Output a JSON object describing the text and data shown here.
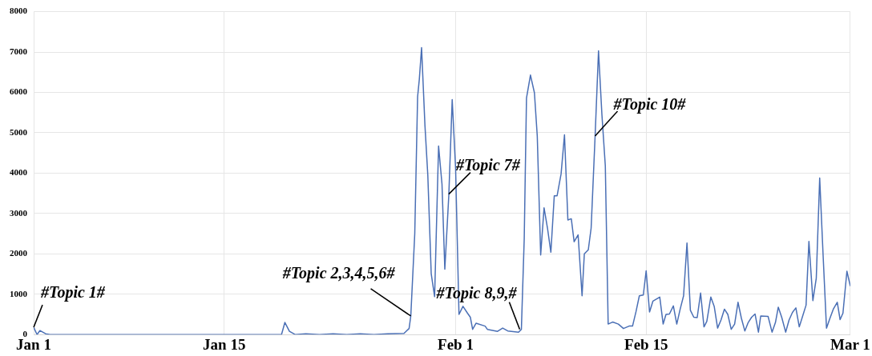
{
  "chart_data": {
    "type": "line",
    "color": "#4a6fb5",
    "xlim": [
      "--01-01",
      "--03-01"
    ],
    "ylim": [
      0,
      8000
    ],
    "xticks": [
      {
        "value": "--01-01",
        "label": "Jan 1"
      },
      {
        "value": "--01-15",
        "label": "Jan 15"
      },
      {
        "value": "--02-01",
        "label": "Feb 1"
      },
      {
        "value": "--02-15",
        "label": "Feb 15"
      },
      {
        "value": "--03-01",
        "label": "Mar 1"
      }
    ],
    "yticks": [
      0,
      1000,
      2000,
      3000,
      4000,
      5000,
      6000,
      7000,
      8000
    ],
    "grid": true,
    "marker": "none",
    "line_style": "solid",
    "x": [
      "--01-01T00:00",
      "--01-01T06:00",
      "--01-01T11:00",
      "--01-01T21:00",
      "--01-02T05:00",
      "--01-19T05:00",
      "--01-19T11:00",
      "--01-19T19:00",
      "--01-20T05:00",
      "--01-21T00:00",
      "--01-22T00:00",
      "--01-23T00:00",
      "--01-24T00:00",
      "--01-25T00:00",
      "--01-26T00:00",
      "--01-27T00:00",
      "--01-28T05:00",
      "--01-28T14:00",
      "--01-28T17:00",
      "--01-29T00:00",
      "--01-29T05:00",
      "--01-29T08:00",
      "--01-29T12:00",
      "--01-29T18:00",
      "--01-29T23:00",
      "--01-30T05:00",
      "--01-30T11:00",
      "--01-30T18:00",
      "--01-31T00:00",
      "--01-31T05:00",
      "--01-31T12:00",
      "--01-31T18:00",
      "--02-01T00:00",
      "--02-01T06:00",
      "--02-01T13:00",
      "--02-01T21:00",
      "--02-02T02:00",
      "--02-02T06:00",
      "--02-02T12:00",
      "--02-03T04:00",
      "--02-03T08:00",
      "--02-04T02:00",
      "--02-04T11:00",
      "--02-04T20:00",
      "--02-05T15:00",
      "--02-05T20:00",
      "--02-06T01:00",
      "--02-06T05:00",
      "--02-06T12:00",
      "--02-06T19:00",
      "--02-07T00:00",
      "--02-07T06:00",
      "--02-07T12:00",
      "--02-07T18:00",
      "--02-08T00:00",
      "--02-08T06:00",
      "--02-08T11:00",
      "--02-08T18:00",
      "--02-09T00:00",
      "--02-09T06:00",
      "--02-09T12:00",
      "--02-09T17:00",
      "--02-10T00:00",
      "--02-10T07:00",
      "--02-10T11:00",
      "--02-10T18:00",
      "--02-10T23:00",
      "--02-11T06:00",
      "--02-11T12:00",
      "--02-11T18:00",
      "--02-12T00:00",
      "--02-12T05:00",
      "--02-12T13:00",
      "--02-12T23:00",
      "--02-13T08:00",
      "--02-13T18:00",
      "--02-14T00:00",
      "--02-14T06:00",
      "--02-14T12:00",
      "--02-14T19:00",
      "--02-15T00:00",
      "--02-15T06:00",
      "--02-15T12:00",
      "--02-16T00:00",
      "--02-16T06:00",
      "--02-16T11:00",
      "--02-16T17:00",
      "--02-17T00:00",
      "--02-17T06:00",
      "--02-17T12:00",
      "--02-17T18:00",
      "--02-18T00:00",
      "--02-18T06:00",
      "--02-18T12:00",
      "--02-18T18:00",
      "--02-19T00:00",
      "--02-19T06:00",
      "--02-19T11:00",
      "--02-19T18:00",
      "--02-20T00:00",
      "--02-20T06:00",
      "--02-20T12:00",
      "--02-20T18:00",
      "--02-21T00:00",
      "--02-21T06:00",
      "--02-21T12:00",
      "--02-21T18:00",
      "--02-22T00:00",
      "--02-22T06:00",
      "--02-22T12:00",
      "--02-22T18:00",
      "--02-23T00:00",
      "--02-23T06:00",
      "--02-23T10:00",
      "--02-23T23:00",
      "--02-24T06:00",
      "--02-24T12:00",
      "--02-24T17:00",
      "--02-24T23:00",
      "--02-25T06:00",
      "--02-25T12:00",
      "--02-25T18:00",
      "--02-26T00:00",
      "--02-26T06:00",
      "--02-26T12:00",
      "--02-26T18:00",
      "--02-26T23:00",
      "--02-27T06:00",
      "--02-27T12:00",
      "--02-27T18:00",
      "--02-28T00:00",
      "--02-28T06:00",
      "--02-28T12:00",
      "--02-28T18:00",
      "--02-29T01:00",
      "--02-29T06:00",
      "--02-29T11:00",
      "--02-29T18:00",
      "--03-01T00:00"
    ],
    "values": [
      180,
      0,
      100,
      20,
      0,
      0,
      300,
      80,
      0,
      20,
      0,
      20,
      0,
      20,
      0,
      20,
      30,
      150,
      460,
      2500,
      5890,
      6320,
      7110,
      5170,
      3950,
      1510,
      940,
      4670,
      3730,
      1620,
      3440,
      5820,
      4120,
      500,
      700,
      530,
      430,
      130,
      280,
      210,
      130,
      80,
      160,
      90,
      60,
      130,
      2370,
      5860,
      6430,
      5990,
      4920,
      1970,
      3140,
      2640,
      2040,
      3440,
      3440,
      3980,
      4950,
      2840,
      2870,
      2300,
      2470,
      960,
      2000,
      2100,
      2640,
      4920,
      7030,
      5450,
      4180,
      260,
      310,
      260,
      150,
      210,
      210,
      560,
      960,
      980,
      1580,
      560,
      830,
      930,
      260,
      500,
      510,
      710,
      260,
      630,
      960,
      2270,
      600,
      430,
      420,
      1030,
      190,
      330,
      930,
      700,
      160,
      360,
      630,
      500,
      130,
      260,
      800,
      400,
      90,
      300,
      430,
      510,
      60,
      460,
      450,
      60,
      300,
      680,
      430,
      60,
      360,
      550,
      660,
      190,
      460,
      730,
      2310,
      840,
      1400,
      3880,
      1970,
      160,
      400,
      630,
      800,
      370,
      530,
      1570,
      1200
    ],
    "annotations": [
      {
        "text": "#Topic 1#",
        "x": "--01-01T00:00",
        "y": 180
      },
      {
        "text": "#Topic 2,3,4,5,6#",
        "x": "--01-28T17:00",
        "y": 460
      },
      {
        "text": "#Topic 7#",
        "x": "--01-31T12:00",
        "y": 3480
      },
      {
        "text": "#Topic 8,9,#",
        "x": "--02-05T17:00",
        "y": 130
      },
      {
        "text": "#Topic 10#",
        "x": "--02-11T06:00",
        "y": 4920
      }
    ]
  }
}
